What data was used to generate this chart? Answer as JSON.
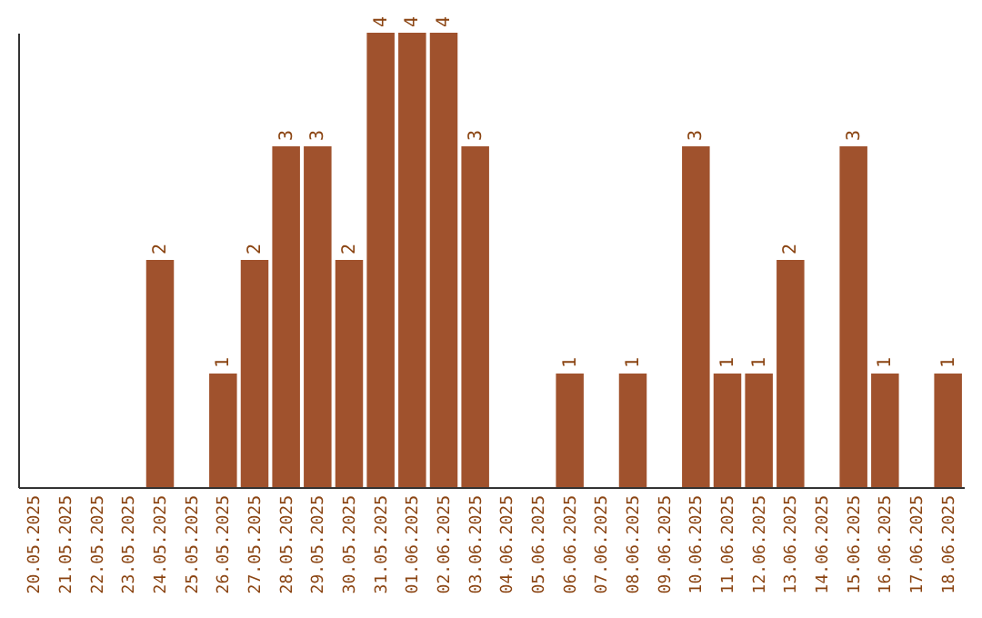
{
  "chart_data": {
    "type": "bar",
    "categories": [
      "20.05.2025",
      "21.05.2025",
      "22.05.2025",
      "23.05.2025",
      "24.05.2025",
      "25.05.2025",
      "26.05.2025",
      "27.05.2025",
      "28.05.2025",
      "29.05.2025",
      "30.05.2025",
      "31.05.2025",
      "01.06.2025",
      "02.06.2025",
      "03.06.2025",
      "04.06.2025",
      "05.06.2025",
      "06.06.2025",
      "07.06.2025",
      "08.06.2025",
      "09.06.2025",
      "10.06.2025",
      "11.06.2025",
      "12.06.2025",
      "13.06.2025",
      "14.06.2025",
      "15.06.2025",
      "16.06.2025",
      "17.06.2025",
      "18.06.2025"
    ],
    "values": [
      0,
      0,
      0,
      0,
      2,
      0,
      1,
      2,
      3,
      3,
      2,
      4,
      4,
      4,
      3,
      0,
      0,
      1,
      0,
      1,
      0,
      3,
      1,
      1,
      2,
      0,
      3,
      1,
      0,
      1
    ],
    "value_labels": [
      null,
      null,
      null,
      null,
      "2",
      null,
      "1",
      "2",
      "3",
      "3",
      "2",
      "4",
      "4",
      "4",
      "3",
      null,
      null,
      "1",
      null,
      "1",
      null,
      "3",
      "1",
      "1",
      "2",
      null,
      "3",
      "1",
      null,
      "1"
    ],
    "color": "#a0522d",
    "tick_labels": "x"
  }
}
